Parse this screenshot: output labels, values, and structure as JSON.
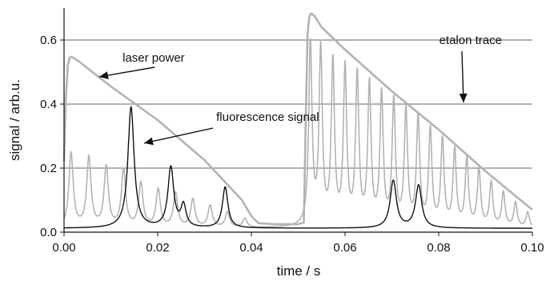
{
  "chart_data": {
    "type": "line",
    "title": "",
    "xlabel": "time / s",
    "ylabel": "signal / arb.u.",
    "xlim": [
      0.0,
      0.1
    ],
    "ylim": [
      0.0,
      0.7
    ],
    "x_ticks": [
      0.0,
      0.02,
      0.04,
      0.06,
      0.08,
      0.1
    ],
    "x_tick_labels": [
      "0.00",
      "0.02",
      "0.04",
      "0.06",
      "0.08",
      "0.10"
    ],
    "y_ticks": [
      0.0,
      0.2,
      0.4,
      0.6
    ],
    "y_tick_labels": [
      "0.0",
      "0.2",
      "0.4",
      "0.6"
    ],
    "grid": "horizontal",
    "series": [
      {
        "key": "laser",
        "color": "#b3b3b3",
        "x": [
          0.0,
          0.0004,
          0.0008,
          0.0012,
          0.0016,
          0.003,
          0.01,
          0.02,
          0.03,
          0.038,
          0.04,
          0.0415,
          0.045,
          0.05,
          0.0512,
          0.0516,
          0.052,
          0.0524,
          0.0528,
          0.0535,
          0.055,
          0.06,
          0.07,
          0.08,
          0.09,
          0.1
        ],
        "values": [
          0.22,
          0.42,
          0.52,
          0.545,
          0.548,
          0.535,
          0.455,
          0.35,
          0.225,
          0.1,
          0.05,
          0.028,
          0.025,
          0.025,
          0.03,
          0.35,
          0.62,
          0.675,
          0.683,
          0.675,
          0.64,
          0.57,
          0.44,
          0.32,
          0.19,
          0.07
        ]
      },
      {
        "key": "etalon",
        "color": "#b3b3b3",
        "baseline": 0.012,
        "peaks_x": [
          0.0015,
          0.0053,
          0.009,
          0.0127,
          0.0164,
          0.0201,
          0.0238,
          0.0275,
          0.0312,
          0.0349,
          0.0386,
          0.0526,
          0.0548,
          0.0574,
          0.06,
          0.0626,
          0.0652,
          0.0678,
          0.0704,
          0.073,
          0.0756,
          0.0782,
          0.0808,
          0.0834,
          0.086,
          0.0886,
          0.0912,
          0.0938,
          0.0964,
          0.099
        ],
        "peaks_y": [
          0.245,
          0.23,
          0.2,
          0.19,
          0.15,
          0.13,
          0.12,
          0.1,
          0.08,
          0.06,
          0.04,
          0.58,
          0.56,
          0.52,
          0.5,
          0.48,
          0.45,
          0.42,
          0.4,
          0.37,
          0.35,
          0.31,
          0.28,
          0.25,
          0.22,
          0.19,
          0.15,
          0.12,
          0.09,
          0.06
        ]
      },
      {
        "key": "fluorescence",
        "color": "#111111",
        "baseline": 0.012,
        "peaks_x": [
          0.0143,
          0.0228,
          0.0255,
          0.0344,
          0.0703,
          0.0757
        ],
        "peaks_y": [
          0.39,
          0.2,
          0.08,
          0.14,
          0.16,
          0.145
        ],
        "peaks_width": [
          0.0016,
          0.0015,
          0.0013,
          0.0014,
          0.0016,
          0.0016
        ]
      }
    ],
    "annotations": [
      {
        "text": "laser power",
        "x": 0.0125,
        "y": 0.545,
        "arrow_to": [
          0.0075,
          0.485
        ]
      },
      {
        "text": "fluorescence signal",
        "x": 0.0325,
        "y": 0.36,
        "arrow_to": [
          0.0171,
          0.278
        ]
      },
      {
        "text": "etalon trace",
        "x": 0.0935,
        "y": 0.6,
        "arrow_to": [
          0.0853,
          0.405
        ]
      }
    ]
  }
}
